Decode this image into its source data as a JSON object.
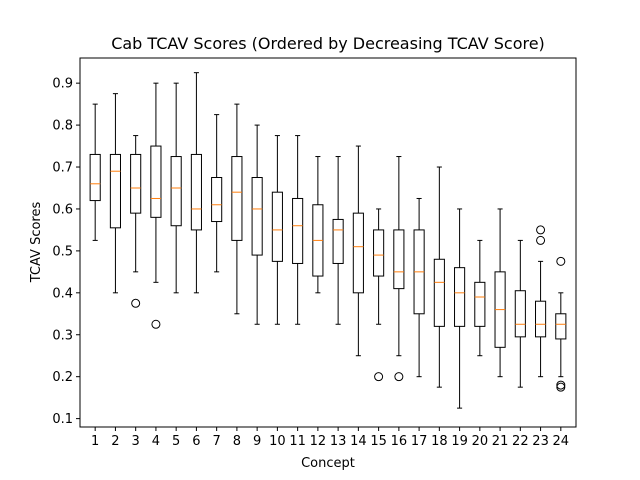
{
  "chart_data": {
    "type": "boxplot",
    "title": "Cab TCAV Scores (Ordered by Decreasing TCAV Score)",
    "xlabel": "Concept",
    "ylabel": "TCAV Scores",
    "ylim": [
      0.08,
      0.96
    ],
    "yticks": [
      0.1,
      0.2,
      0.3,
      0.4,
      0.5,
      0.6,
      0.7,
      0.8,
      0.9
    ],
    "grid": false,
    "colors": {
      "box": "#000000",
      "median": "#ff7f0e",
      "outlier": "#000000"
    },
    "boxes": [
      {
        "label": "1",
        "whisker_low": 0.525,
        "q1": 0.62,
        "median": 0.66,
        "q3": 0.73,
        "whisker_high": 0.85,
        "outliers": []
      },
      {
        "label": "2",
        "whisker_low": 0.4,
        "q1": 0.555,
        "median": 0.69,
        "q3": 0.73,
        "whisker_high": 0.875,
        "outliers": []
      },
      {
        "label": "3",
        "whisker_low": 0.45,
        "q1": 0.59,
        "median": 0.65,
        "q3": 0.73,
        "whisker_high": 0.775,
        "outliers": [
          0.375
        ]
      },
      {
        "label": "4",
        "whisker_low": 0.425,
        "q1": 0.58,
        "median": 0.625,
        "q3": 0.75,
        "whisker_high": 0.9,
        "outliers": [
          0.325
        ]
      },
      {
        "label": "5",
        "whisker_low": 0.4,
        "q1": 0.56,
        "median": 0.65,
        "q3": 0.725,
        "whisker_high": 0.9,
        "outliers": []
      },
      {
        "label": "6",
        "whisker_low": 0.4,
        "q1": 0.55,
        "median": 0.6,
        "q3": 0.73,
        "whisker_high": 0.925,
        "outliers": []
      },
      {
        "label": "7",
        "whisker_low": 0.45,
        "q1": 0.57,
        "median": 0.61,
        "q3": 0.675,
        "whisker_high": 0.825,
        "outliers": []
      },
      {
        "label": "8",
        "whisker_low": 0.35,
        "q1": 0.525,
        "median": 0.64,
        "q3": 0.725,
        "whisker_high": 0.85,
        "outliers": []
      },
      {
        "label": "9",
        "whisker_low": 0.325,
        "q1": 0.49,
        "median": 0.6,
        "q3": 0.675,
        "whisker_high": 0.8,
        "outliers": []
      },
      {
        "label": "10",
        "whisker_low": 0.325,
        "q1": 0.475,
        "median": 0.55,
        "q3": 0.64,
        "whisker_high": 0.775,
        "outliers": []
      },
      {
        "label": "11",
        "whisker_low": 0.325,
        "q1": 0.47,
        "median": 0.56,
        "q3": 0.625,
        "whisker_high": 0.775,
        "outliers": []
      },
      {
        "label": "12",
        "whisker_low": 0.4,
        "q1": 0.44,
        "median": 0.525,
        "q3": 0.61,
        "whisker_high": 0.725,
        "outliers": []
      },
      {
        "label": "13",
        "whisker_low": 0.325,
        "q1": 0.47,
        "median": 0.55,
        "q3": 0.575,
        "whisker_high": 0.725,
        "outliers": []
      },
      {
        "label": "14",
        "whisker_low": 0.25,
        "q1": 0.4,
        "median": 0.51,
        "q3": 0.59,
        "whisker_high": 0.75,
        "outliers": []
      },
      {
        "label": "15",
        "whisker_low": 0.325,
        "q1": 0.44,
        "median": 0.49,
        "q3": 0.55,
        "whisker_high": 0.6,
        "outliers": [
          0.2
        ]
      },
      {
        "label": "16",
        "whisker_low": 0.25,
        "q1": 0.41,
        "median": 0.45,
        "q3": 0.55,
        "whisker_high": 0.725,
        "outliers": [
          0.2
        ]
      },
      {
        "label": "17",
        "whisker_low": 0.2,
        "q1": 0.35,
        "median": 0.45,
        "q3": 0.55,
        "whisker_high": 0.625,
        "outliers": []
      },
      {
        "label": "18",
        "whisker_low": 0.175,
        "q1": 0.32,
        "median": 0.425,
        "q3": 0.48,
        "whisker_high": 0.7,
        "outliers": []
      },
      {
        "label": "19",
        "whisker_low": 0.125,
        "q1": 0.32,
        "median": 0.4,
        "q3": 0.46,
        "whisker_high": 0.6,
        "outliers": []
      },
      {
        "label": "20",
        "whisker_low": 0.25,
        "q1": 0.32,
        "median": 0.39,
        "q3": 0.425,
        "whisker_high": 0.525,
        "outliers": []
      },
      {
        "label": "21",
        "whisker_low": 0.2,
        "q1": 0.27,
        "median": 0.36,
        "q3": 0.45,
        "whisker_high": 0.6,
        "outliers": []
      },
      {
        "label": "22",
        "whisker_low": 0.175,
        "q1": 0.295,
        "median": 0.325,
        "q3": 0.405,
        "whisker_high": 0.525,
        "outliers": []
      },
      {
        "label": "23",
        "whisker_low": 0.2,
        "q1": 0.295,
        "median": 0.325,
        "q3": 0.38,
        "whisker_high": 0.475,
        "outliers": [
          0.525,
          0.55
        ]
      },
      {
        "label": "24",
        "whisker_low": 0.2,
        "q1": 0.29,
        "median": 0.325,
        "q3": 0.35,
        "whisker_high": 0.4,
        "outliers": [
          0.475,
          0.18,
          0.175
        ]
      }
    ]
  }
}
